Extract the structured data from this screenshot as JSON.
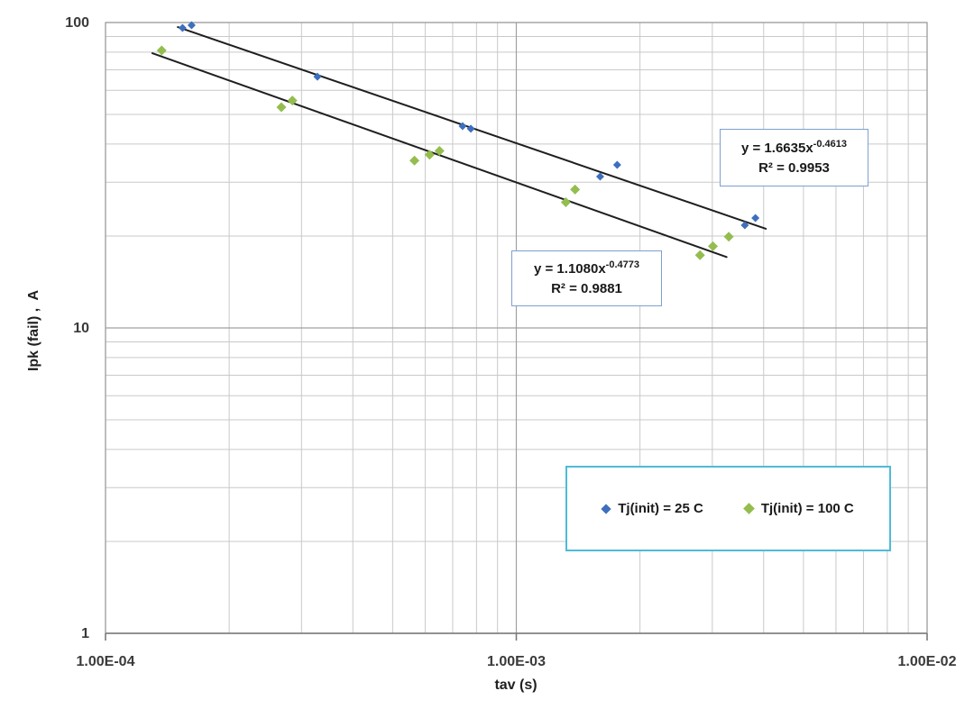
{
  "colors": {
    "series_blue": "#3e6fbe",
    "series_green": "#94bd4f",
    "trendline": "#1f1f1f",
    "minor_grid": "#c9c9c9",
    "major_grid": "#a0a0a0",
    "axis_line": "#7a7a7a",
    "equation_box_border": "#7ea0cf",
    "legend_border": "#4fbbd7",
    "tick_text": "#3a3a3a"
  },
  "chart_data": {
    "type": "scatter",
    "scale": "log-log",
    "grid": "on",
    "x_axis": {
      "label": "tav (s)",
      "scale": "log",
      "min": 0.0001,
      "max": 0.01,
      "ticks": [
        {
          "value": 0.0001,
          "label": "1.00E-04"
        },
        {
          "value": 0.001,
          "label": "1.00E-03"
        },
        {
          "value": 0.01,
          "label": "1.00E-02"
        }
      ]
    },
    "y_axis": {
      "label": "Ipk (fail) ,  A",
      "scale": "log",
      "min": 1,
      "max": 100,
      "ticks": [
        {
          "value": 100,
          "label": "100"
        },
        {
          "value": 10,
          "label": "10"
        },
        {
          "value": 1,
          "label": "1"
        }
      ]
    },
    "series": [
      {
        "name": "Tj(init) = 25 C",
        "color": "#3e6fbe",
        "marker": "diamond",
        "marker_size": 9,
        "points": [
          [
            0.000154,
            96.0
          ],
          [
            0.000162,
            98.0
          ],
          [
            0.000328,
            66.5
          ],
          [
            0.00074,
            45.8
          ],
          [
            0.000775,
            44.9
          ],
          [
            0.0016,
            31.3
          ],
          [
            0.00176,
            34.2
          ],
          [
            0.0036,
            21.7
          ],
          [
            0.00382,
            22.9
          ]
        ]
      },
      {
        "name": "Tj(init) = 100 C",
        "color": "#94bd4f",
        "marker": "diamond",
        "marker_size": 11,
        "points": [
          [
            0.000137,
            81.0
          ],
          [
            0.000268,
            52.8
          ],
          [
            0.000285,
            55.5
          ],
          [
            0.000565,
            35.3
          ],
          [
            0.000615,
            36.9
          ],
          [
            0.00065,
            38.0
          ],
          [
            0.00132,
            25.8
          ],
          [
            0.00139,
            28.4
          ],
          [
            0.0028,
            17.3
          ],
          [
            0.00301,
            18.5
          ],
          [
            0.00329,
            19.9
          ]
        ]
      }
    ],
    "trendlines": [
      {
        "series": "Tj(init) = 25 C",
        "coef": 1.6635,
        "exp": -0.4613,
        "r2": 0.9953,
        "x_start": 0.00015,
        "x_end": 0.00405,
        "color": "#1f1f1f",
        "equation_text": "y = 1.6635x",
        "exponent_text": "-0.4613",
        "r2_text": "R² = 0.9953"
      },
      {
        "series": "Tj(init) = 100 C",
        "coef": 1.108,
        "exp": -0.4773,
        "r2": 0.9881,
        "x_start": 0.00013,
        "x_end": 0.00325,
        "color": "#1f1f1f",
        "equation_text": "y = 1.1080x",
        "exponent_text": "-0.4773",
        "r2_text": "R² = 0.9881"
      }
    ],
    "legend": {
      "position": "bottom-right-inside",
      "items": [
        {
          "label": "Tj(init) = 25 C",
          "color": "#3e6fbe",
          "marker": "diamond"
        },
        {
          "label": "Tj(init) = 100 C",
          "color": "#94bd4f",
          "marker": "diamond"
        }
      ]
    }
  }
}
